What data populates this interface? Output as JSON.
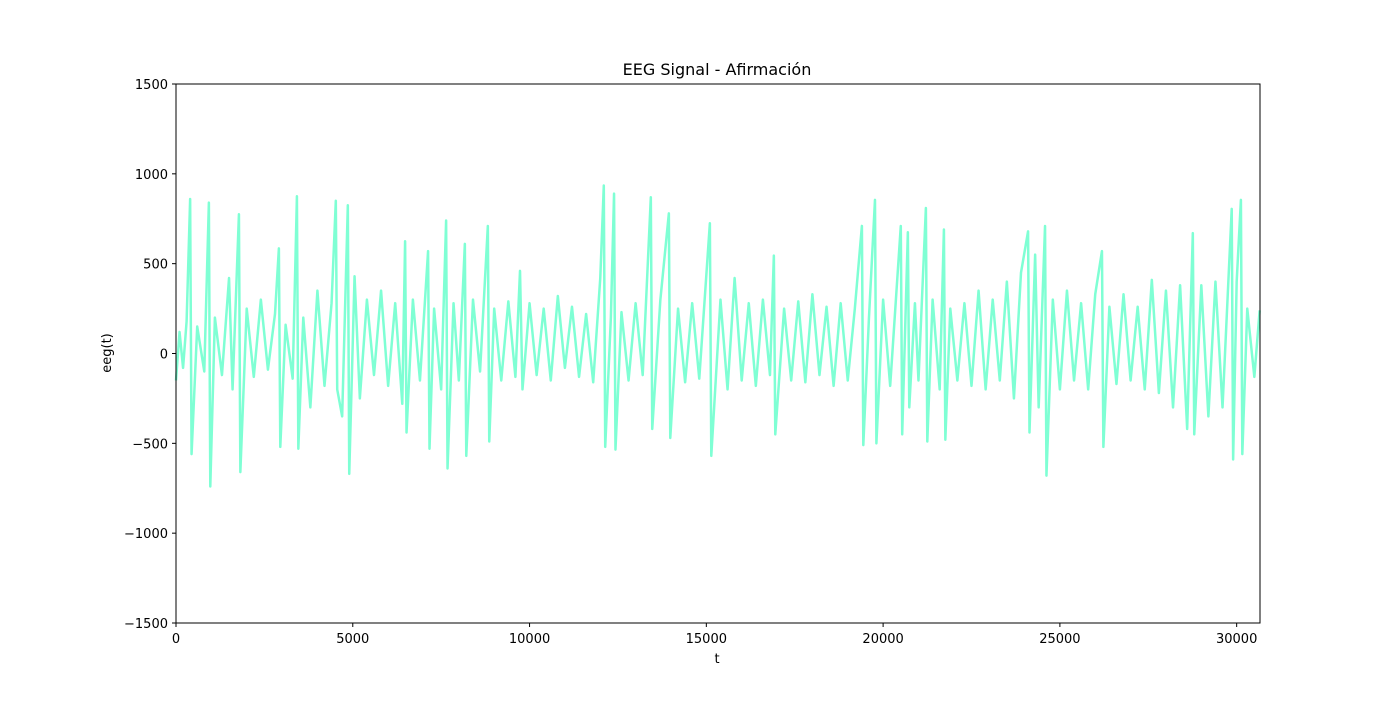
{
  "chart_data": {
    "type": "line",
    "title": "EEG Signal - Afirmación",
    "xlabel": "t",
    "ylabel": "eeg(t)",
    "color": "#7fffd4",
    "x": [
      0,
      100,
      200,
      300,
      400,
      440,
      600,
      800,
      930,
      970,
      1100,
      1300,
      1500,
      1600,
      1780,
      1820,
      2000,
      2200,
      2400,
      2600,
      2800,
      2910,
      2950,
      3100,
      3300,
      3420,
      3460,
      3600,
      3800,
      4000,
      4200,
      4400,
      4520,
      4560,
      4700,
      4860,
      4900,
      5050,
      5200,
      5400,
      5600,
      5800,
      6000,
      6200,
      6400,
      6480,
      6520,
      6700,
      6900,
      7130,
      7170,
      7300,
      7500,
      7640,
      7680,
      7850,
      8000,
      8170,
      8210,
      8400,
      8600,
      8820,
      8860,
      9000,
      9200,
      9400,
      9600,
      9730,
      9800,
      10000,
      10200,
      10400,
      10600,
      10800,
      11000,
      11200,
      11400,
      11600,
      11800,
      12000,
      12100,
      12140,
      12300,
      12390,
      12430,
      12600,
      12800,
      13000,
      13200,
      13430,
      13470,
      13700,
      13940,
      13980,
      14200,
      14400,
      14600,
      14800,
      15100,
      15140,
      15400,
      15600,
      15800,
      16000,
      16200,
      16400,
      16600,
      16800,
      16910,
      16950,
      17200,
      17400,
      17600,
      17800,
      18000,
      18200,
      18400,
      18600,
      18800,
      19000,
      19200,
      19400,
      19440,
      19600,
      19770,
      19810,
      20000,
      20200,
      20500,
      20540,
      20700,
      20740,
      20900,
      21000,
      21210,
      21250,
      21400,
      21600,
      21720,
      21760,
      21900,
      22100,
      22300,
      22500,
      22700,
      22900,
      23100,
      23300,
      23500,
      23700,
      23900,
      24100,
      24140,
      24300,
      24400,
      24580,
      24620,
      24800,
      25000,
      25200,
      25400,
      25600,
      25800,
      26000,
      26190,
      26230,
      26400,
      26600,
      26800,
      27000,
      27200,
      27400,
      27600,
      27800,
      28000,
      28200,
      28400,
      28600,
      28760,
      28800,
      29000,
      29200,
      29400,
      29600,
      29860,
      29900,
      30000,
      30120,
      30160,
      30300,
      30500,
      30650
    ],
    "values": [
      -150,
      120,
      -80,
      180,
      860,
      -560,
      150,
      -100,
      840,
      -740,
      200,
      -120,
      420,
      -200,
      775,
      -660,
      250,
      -130,
      300,
      -90,
      220,
      585,
      -520,
      160,
      -140,
      875,
      -530,
      200,
      -300,
      350,
      -180,
      280,
      850,
      -200,
      -350,
      825,
      -670,
      430,
      -250,
      300,
      -120,
      350,
      -180,
      280,
      -280,
      625,
      -440,
      300,
      -150,
      570,
      -530,
      250,
      -200,
      740,
      -640,
      280,
      -150,
      610,
      -570,
      300,
      -100,
      710,
      -490,
      250,
      -150,
      290,
      -130,
      460,
      -200,
      280,
      -120,
      250,
      -150,
      320,
      -80,
      260,
      -130,
      220,
      -160,
      420,
      935,
      -520,
      200,
      890,
      -535,
      230,
      -150,
      280,
      -120,
      870,
      -420,
      300,
      780,
      -470,
      250,
      -160,
      280,
      -140,
      725,
      -570,
      300,
      -200,
      420,
      -150,
      280,
      -180,
      300,
      -120,
      545,
      -450,
      250,
      -150,
      290,
      -160,
      330,
      -120,
      260,
      -180,
      280,
      -150,
      250,
      710,
      -510,
      200,
      855,
      -500,
      300,
      -180,
      710,
      -450,
      675,
      -300,
      280,
      -150,
      810,
      -490,
      300,
      -200,
      690,
      -480,
      250,
      -150,
      280,
      -180,
      350,
      -200,
      300,
      -150,
      400,
      -250,
      450,
      680,
      -440,
      550,
      -300,
      710,
      -680,
      300,
      -200,
      350,
      -150,
      280,
      -200,
      330,
      570,
      -520,
      260,
      -170,
      330,
      -150,
      260,
      -200,
      410,
      -220,
      350,
      -300,
      380,
      -420,
      670,
      -450,
      380,
      -350,
      400,
      -300,
      805,
      -590,
      400,
      855,
      -560,
      250,
      -130,
      240
    ],
    "xlim": [
      0,
      30660
    ],
    "ylim": [
      -1500,
      1500
    ],
    "xticks": [
      0,
      5000,
      10000,
      15000,
      20000,
      25000,
      30000
    ],
    "yticks": [
      {
        "value": -1500,
        "label": "−1500"
      },
      {
        "value": -1000,
        "label": "−1000"
      },
      {
        "value": -500,
        "label": "−500"
      },
      0,
      500,
      1000,
      1500
    ]
  }
}
